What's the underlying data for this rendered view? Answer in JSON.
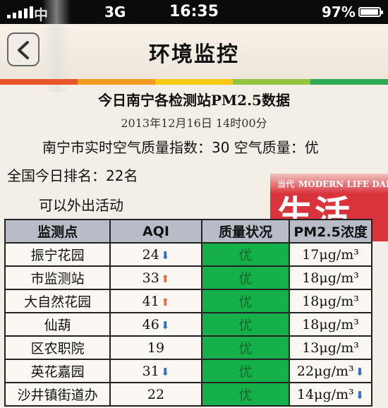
{
  "status_bar": {
    "carrier": "中",
    "network": "3G",
    "time": "16:35",
    "battery_pct": "97%",
    "battery_level": 0.97
  },
  "nav": {
    "title": "环境监控",
    "back_icon": "chevron-left-icon"
  },
  "color_strip": [
    "#e8542a",
    "#f39b1e",
    "#f6c812",
    "#93c43e",
    "#2fa853"
  ],
  "heading": "今日南宁各检测站PM2.5数据",
  "date": "2013年12月16日 14时00分",
  "aqi_line": "南宁市实时空气质量指数：30 空气质量：优",
  "rank_line": "全国今日排名：22名",
  "advice_line": "可以外出活动",
  "watermark": {
    "small": "当代",
    "english": "MODERN LIFE DAILY",
    "big": "生活报"
  },
  "table": {
    "headers": [
      "监测点",
      "AQI",
      "质量状况",
      "PM2.5浓度"
    ],
    "rows": [
      {
        "station": "振宁花园",
        "aqi": "24",
        "trend": "down",
        "quality": "优",
        "pm": "17μg/m³",
        "pm_trend": ""
      },
      {
        "station": "市监测站",
        "aqi": "33",
        "trend": "up",
        "quality": "优",
        "pm": "18μg/m³",
        "pm_trend": ""
      },
      {
        "station": "大自然花园",
        "aqi": "41",
        "trend": "up",
        "quality": "优",
        "pm": "18μg/m³",
        "pm_trend": ""
      },
      {
        "station": "仙葫",
        "aqi": "46",
        "trend": "down",
        "quality": "优",
        "pm": "18μg/m³",
        "pm_trend": ""
      },
      {
        "station": "区农职院",
        "aqi": "19",
        "trend": "",
        "quality": "优",
        "pm": "13μg/m³",
        "pm_trend": ""
      },
      {
        "station": "英花嘉园",
        "aqi": "31",
        "trend": "down",
        "quality": "优",
        "pm": "22μg/m³",
        "pm_trend": "down"
      },
      {
        "station": "沙井镇街道办",
        "aqi": "22",
        "trend": "",
        "quality": "优",
        "pm": "14μg/m³",
        "pm_trend": "down"
      }
    ],
    "quality_color": "#16b04a"
  }
}
